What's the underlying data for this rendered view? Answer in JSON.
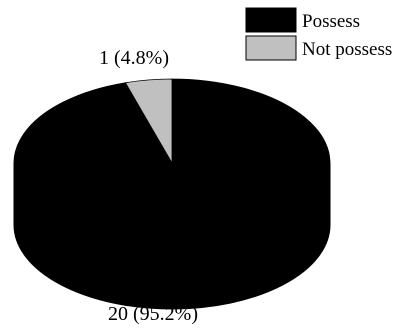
{
  "chart_data": {
    "type": "pie",
    "style": "3d",
    "title": "",
    "legend_position": "top-right",
    "slices": [
      {
        "label": "Possess",
        "value": 20,
        "percent": 95.2,
        "data_label": "20 (95.2%)",
        "color": "#000000"
      },
      {
        "label": "Not possess",
        "value": 1,
        "percent": 4.8,
        "data_label": "1 (4.8%)",
        "color": "#c0c0c0"
      }
    ]
  }
}
